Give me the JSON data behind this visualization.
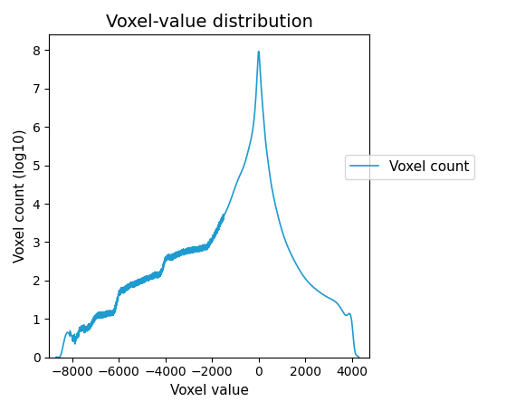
{
  "title": "Voxel-value distribution",
  "xlabel": "Voxel value",
  "ylabel": "Voxel count (log10)",
  "line_color": "#1f9bcf",
  "line_label": "Voxel count",
  "xlim": [
    -9000,
    4750
  ],
  "ylim": [
    0,
    8.4
  ],
  "yticks": [
    0,
    1,
    2,
    3,
    4,
    5,
    6,
    7,
    8
  ],
  "xticks": [
    -8000,
    -6000,
    -4000,
    -2000,
    0,
    2000,
    4000
  ],
  "figsize": [
    5.7,
    4.54
  ],
  "dpi": 100
}
